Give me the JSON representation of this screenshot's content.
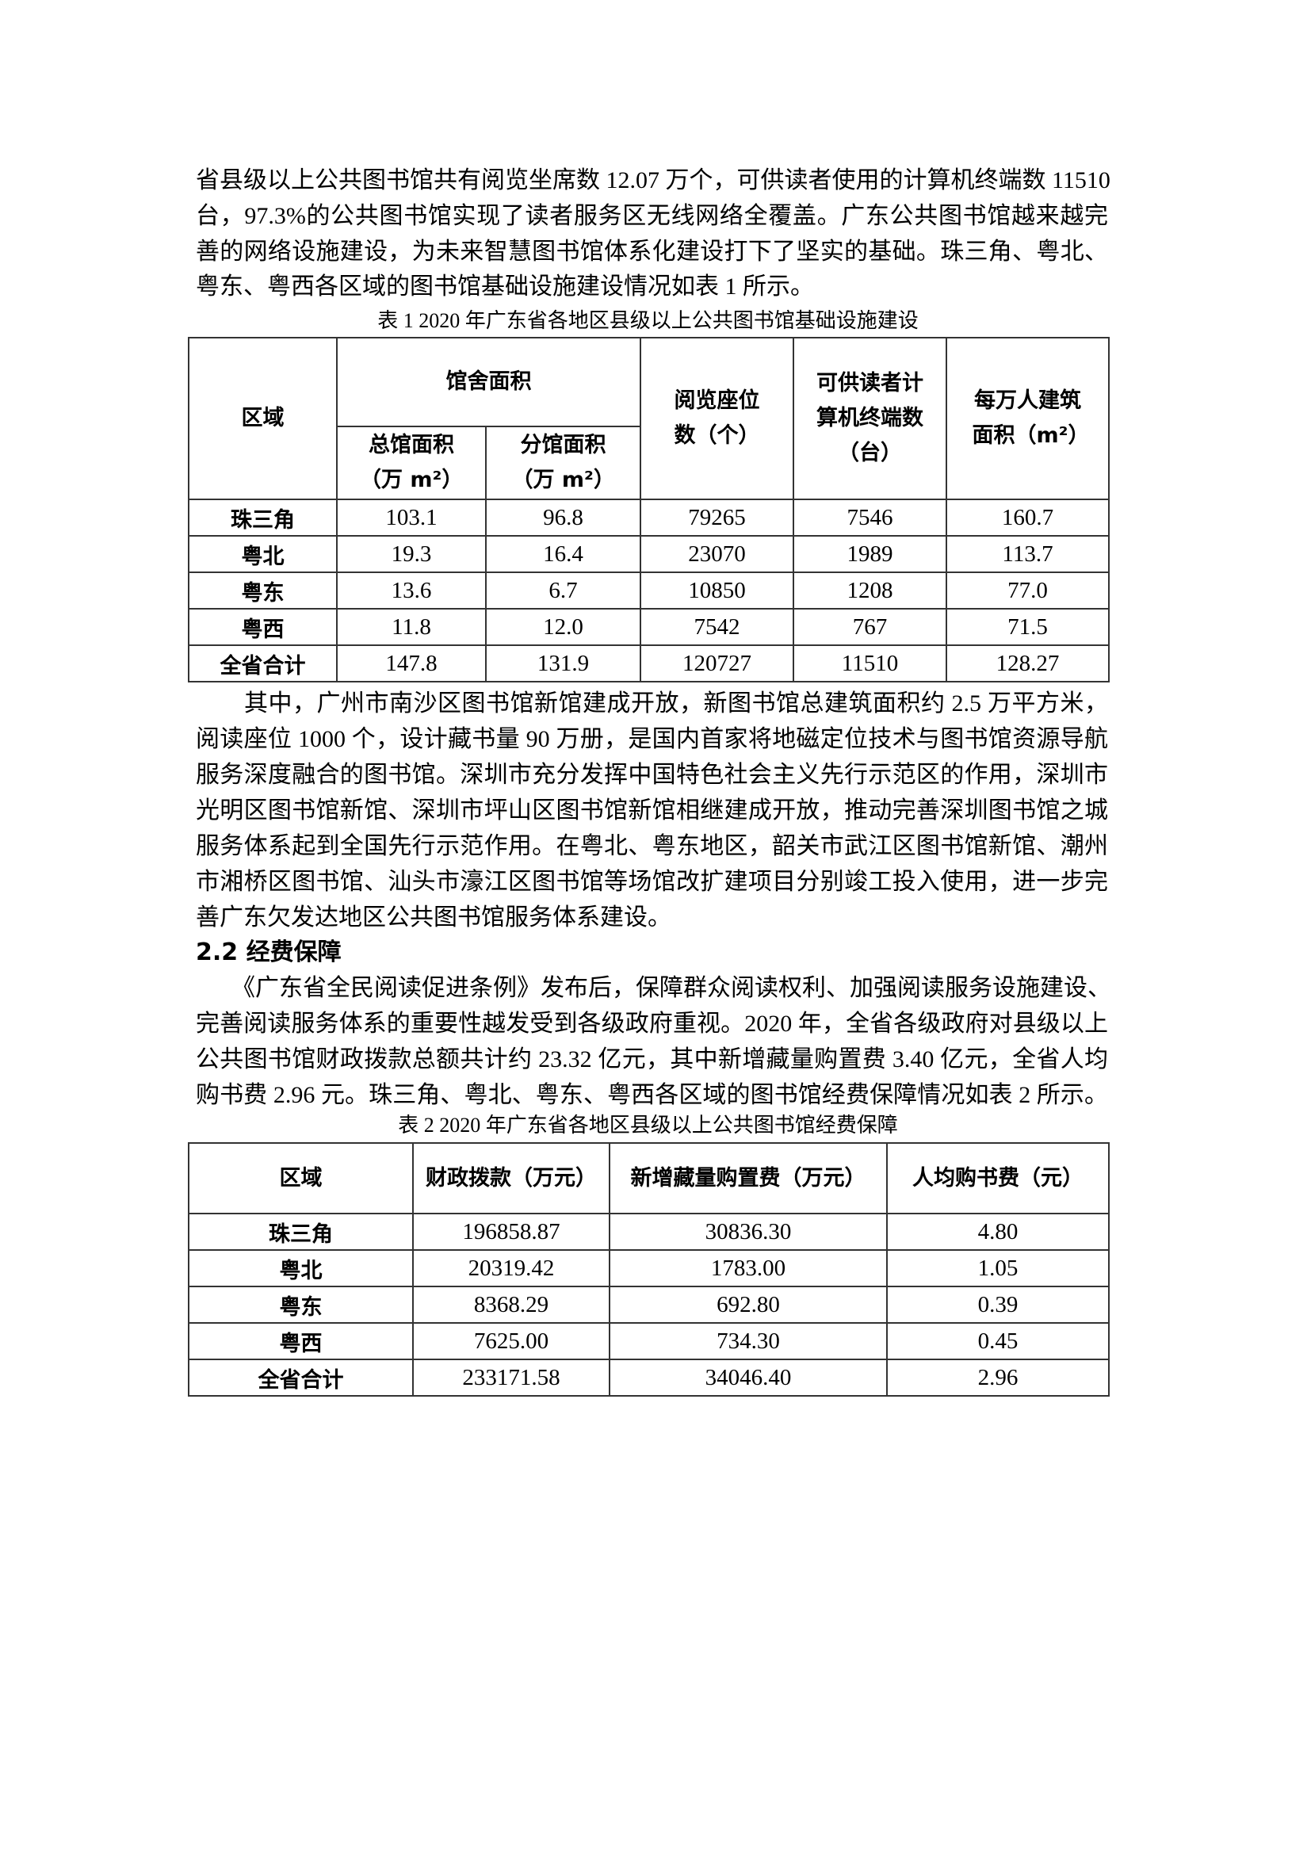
{
  "paragraph1": [
    "省县级以上公共图书馆共有阅览坐席数 12.07 万个，可供读者使用的计算机终端数 11510",
    "台，97.3%的公共图书馆实现了读者服务区无线网络全覆盖。广东公共图书馆越来越完",
    "善的网络设施建设，为未来智慧图书馆体系化建设打下了坚实的基础。珠三角、粤北、",
    "粤东、粤西各区域的图书馆基础设施建设情况如表 1 所示。"
  ],
  "table1": {
    "caption": "表 1 2020 年广东省各地区县级以上公共图书馆基础设施建设",
    "headers": {
      "region": "区域",
      "area_group": "馆舍面积",
      "main_area": "总馆面积（万 m²）",
      "branch_area": "分馆面积（万 m²）",
      "seats": "阅览座位数（个）",
      "terminals": "可供读者计算机终端数（台）",
      "per_10k": "每万人建筑面积（m²）"
    },
    "rows": [
      {
        "region": "珠三角",
        "main_area": "103.1",
        "branch_area": "96.8",
        "seats": "79265",
        "terminals": "7546",
        "per_10k": "160.7"
      },
      {
        "region": "粤北",
        "main_area": "19.3",
        "branch_area": "16.4",
        "seats": "23070",
        "terminals": "1989",
        "per_10k": "113.7"
      },
      {
        "region": "粤东",
        "main_area": "13.6",
        "branch_area": "6.7",
        "seats": "10850",
        "terminals": "1208",
        "per_10k": "77.0"
      },
      {
        "region": "粤西",
        "main_area": "11.8",
        "branch_area": "12.0",
        "seats": "7542",
        "terminals": "767",
        "per_10k": "71.5"
      },
      {
        "region": "全省合计",
        "main_area": "147.8",
        "branch_area": "131.9",
        "seats": "120727",
        "terminals": "11510",
        "per_10k": "128.27"
      }
    ]
  },
  "paragraph2": [
    "　　其中，广州市南沙区图书馆新馆建成开放，新图书馆总建筑面积约 2.5 万平方米，",
    "阅读座位 1000 个，设计藏书量 90 万册，是国内首家将地磁定位技术与图书馆资源导航",
    "服务深度融合的图书馆。深圳市充分发挥中国特色社会主义先行示范区的作用，深圳市",
    "光明区图书馆新馆、深圳市坪山区图书馆新馆相继建成开放，推动完善深圳图书馆之城",
    "服务体系起到全国先行示范作用。在粤北、粤东地区，韶关市武江区图书馆新馆、潮州",
    "市湘桥区图书馆、汕头市濠江区图书馆等场馆改扩建项目分别竣工投入使用，进一步完",
    "善广东欠发达地区公共图书馆服务体系建设。"
  ],
  "section_heading": "2.2  经费保障",
  "paragraph3": [
    "　　《广东省全民阅读促进条例》发布后，保障群众阅读权利、加强阅读服务设施建设、",
    "完善阅读服务体系的重要性越发受到各级政府重视。2020 年，全省各级政府对县级以上",
    "公共图书馆财政拨款总额共计约 23.32 亿元，其中新增藏量购置费 3.40 亿元，全省人均",
    "购书费 2.96 元。珠三角、粤北、粤东、粤西各区域的图书馆经费保障情况如表 2 所示。"
  ],
  "table2": {
    "caption": "表 2 2020 年广东省各地区县级以上公共图书馆经费保障",
    "headers": {
      "region": "区域",
      "funding": "财政拨款（万元）",
      "acquisition": "新增藏量购置费（万元）",
      "per_capita": "人均购书费（元）"
    },
    "rows": [
      {
        "region": "珠三角",
        "funding": "196858.87",
        "acquisition": "30836.30",
        "per_capita": "4.80"
      },
      {
        "region": "粤北",
        "funding": "20319.42",
        "acquisition": "1783.00",
        "per_capita": "1.05"
      },
      {
        "region": "粤东",
        "funding": "8368.29",
        "acquisition": "692.80",
        "per_capita": "0.39"
      },
      {
        "region": "粤西",
        "funding": "7625.00",
        "acquisition": "734.30",
        "per_capita": "0.45"
      },
      {
        "region": "全省合计",
        "funding": "233171.58",
        "acquisition": "34046.40",
        "per_capita": "2.96"
      }
    ]
  }
}
